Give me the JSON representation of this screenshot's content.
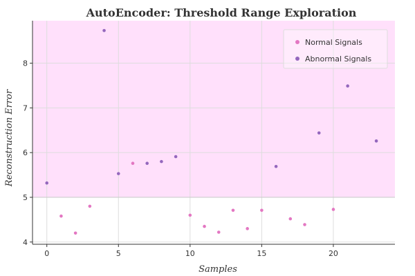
{
  "chart_data": {
    "type": "scatter",
    "title": "AutoEncoder: Threshold Range Exploration",
    "xlabel": "Samples",
    "ylabel": "Reconstruction Error",
    "xlim": [
      -1,
      24.3
    ],
    "ylim": [
      3.95,
      8.95
    ],
    "x_ticks": [
      0,
      5,
      10,
      15,
      20
    ],
    "y_ticks": [
      4,
      5,
      6,
      7,
      8
    ],
    "threshold": 5.0,
    "grid": true,
    "legend_position": "top-right",
    "colors": {
      "normal": "#e377c2",
      "abnormal": "#9467bd",
      "band_above": "#ffe0fb",
      "threshold_line": "#cccccc",
      "grid": "#dddddd"
    },
    "series": [
      {
        "name": "Normal Signals",
        "x": [
          1,
          2,
          3,
          6,
          10,
          11,
          12,
          13,
          14,
          15,
          17,
          18,
          20
        ],
        "y": [
          4.58,
          4.2,
          4.8,
          5.76,
          4.6,
          4.35,
          4.22,
          4.71,
          4.3,
          4.71,
          4.52,
          4.39,
          4.73
        ]
      },
      {
        "name": "Abnormal Signals",
        "x": [
          0,
          4,
          5,
          7,
          8,
          9,
          16,
          19,
          21,
          23
        ],
        "y": [
          5.32,
          8.73,
          5.53,
          5.76,
          5.8,
          5.91,
          5.69,
          6.44,
          7.49,
          6.26
        ]
      }
    ]
  }
}
